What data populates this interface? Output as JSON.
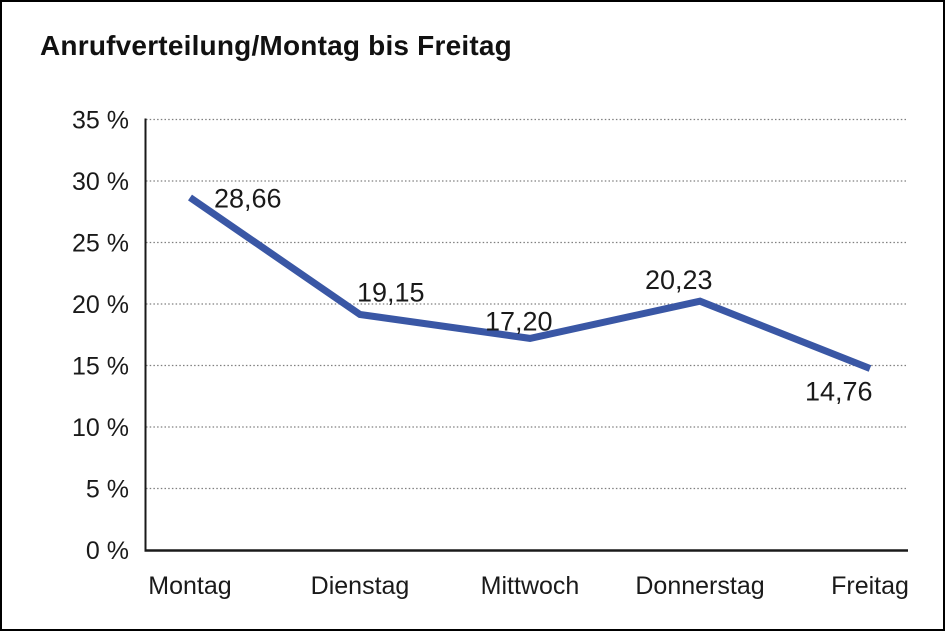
{
  "title": "Anrufverteilung/Montag bis Freitag",
  "chart_data": {
    "type": "line",
    "title": "Anrufverteilung/Montag bis Freitag",
    "categories": [
      "Montag",
      "Dienstag",
      "Mittwoch",
      "Donnerstag",
      "Freitag"
    ],
    "values": [
      28.66,
      19.15,
      17.2,
      20.23,
      14.76
    ],
    "value_labels": [
      "28,66",
      "19,15",
      "17,20",
      "20,23",
      "14,76"
    ],
    "xlabel": "",
    "ylabel": "",
    "ylim": [
      0,
      35
    ],
    "ytick_step": 5,
    "ytick_labels": [
      "0 %",
      "5 %",
      "10 %",
      "15 %",
      "20 %",
      "25 %",
      "30 %",
      "35 %"
    ],
    "grid": "horizontal-dotted",
    "legend_position": "none",
    "colors": {
      "line": "#3a57a5",
      "grid": "#7f7f7f",
      "axis": "#1a1a1a",
      "text": "#1a1a1a",
      "background": "#ffffff",
      "border": "#000000"
    }
  }
}
